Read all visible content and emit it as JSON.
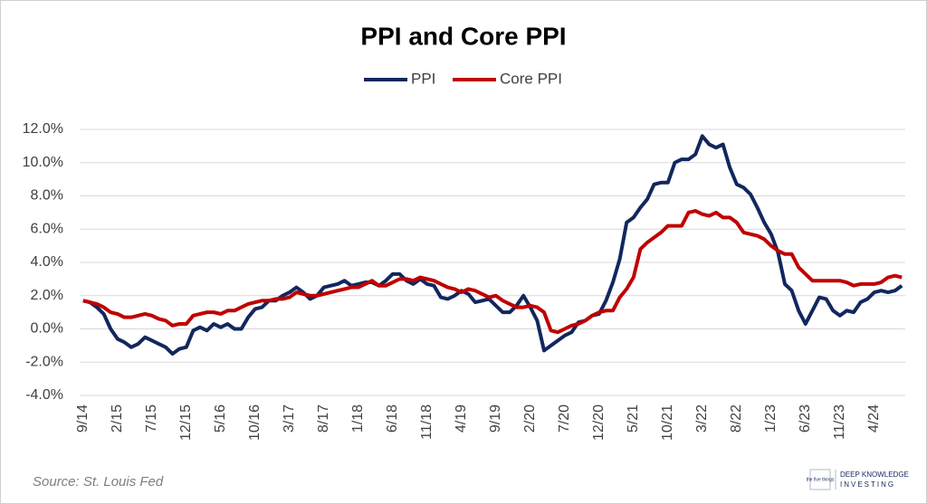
{
  "chart_data": {
    "type": "line",
    "title": "PPI and Core PPI",
    "source": "Source: St. Louis Fed",
    "brand": [
      "the five things",
      "DEEP KNOWLEDGE",
      "INVESTING"
    ],
    "legend": "top",
    "grid": true,
    "categories": [
      "9/14",
      null,
      null,
      null,
      null,
      "2/15",
      null,
      null,
      null,
      null,
      "7/15",
      null,
      null,
      null,
      null,
      "12/15",
      null,
      null,
      null,
      null,
      "5/16",
      null,
      null,
      null,
      null,
      "10/16",
      null,
      null,
      null,
      null,
      "3/17",
      null,
      null,
      null,
      null,
      "8/17",
      null,
      null,
      null,
      null,
      "1/18",
      null,
      null,
      null,
      null,
      "6/18",
      null,
      null,
      null,
      null,
      "11/18",
      null,
      null,
      null,
      null,
      "4/19",
      null,
      null,
      null,
      null,
      "9/19",
      null,
      null,
      null,
      null,
      "2/20",
      null,
      null,
      null,
      null,
      "7/20",
      null,
      null,
      null,
      null,
      "12/20",
      null,
      null,
      null,
      null,
      "5/21",
      null,
      null,
      null,
      null,
      "10/21",
      null,
      null,
      null,
      null,
      "3/22",
      null,
      null,
      null,
      null,
      "8/22",
      null,
      null,
      null,
      null,
      "1/23",
      null,
      null,
      null,
      null,
      "6/23",
      null,
      null,
      null,
      null,
      "11/23",
      null,
      null,
      null,
      null,
      "4/24",
      null,
      null,
      null,
      null
    ],
    "series": [
      {
        "name": "PPI",
        "color": "#12275e",
        "values": [
          1.7,
          1.6,
          1.3,
          0.9,
          0.0,
          -0.6,
          -0.8,
          -1.1,
          -0.9,
          -0.5,
          -0.7,
          -0.9,
          -1.1,
          -1.5,
          -1.2,
          -1.1,
          -0.1,
          0.1,
          -0.1,
          0.3,
          0.1,
          0.3,
          0.0,
          0.0,
          0.7,
          1.2,
          1.3,
          1.7,
          1.7,
          2.0,
          2.2,
          2.5,
          2.2,
          1.8,
          2.0,
          2.5,
          2.6,
          2.7,
          2.9,
          2.6,
          2.7,
          2.8,
          2.8,
          2.6,
          2.9,
          3.3,
          3.3,
          2.9,
          2.7,
          3.0,
          2.7,
          2.6,
          1.9,
          1.8,
          2.0,
          2.3,
          2.1,
          1.6,
          1.7,
          1.8,
          1.4,
          1.0,
          1.0,
          1.4,
          2.0,
          1.3,
          0.5,
          -1.3,
          -1.0,
          -0.7,
          -0.4,
          -0.2,
          0.4,
          0.5,
          0.8,
          0.9,
          1.7,
          2.8,
          4.2,
          6.4,
          6.7,
          7.3,
          7.8,
          8.7,
          8.8,
          8.8,
          10.0,
          10.2,
          10.2,
          10.5,
          11.6,
          11.1,
          10.9,
          11.1,
          9.7,
          8.7,
          8.5,
          8.1,
          7.3,
          6.4,
          5.7,
          4.6,
          2.7,
          2.3,
          1.1,
          0.3,
          1.1,
          1.9,
          1.8,
          1.1,
          0.8,
          1.1,
          1.0,
          1.6,
          1.8,
          2.2,
          2.3,
          2.2,
          2.3,
          2.6
        ]
      },
      {
        "name": "Core PPI",
        "color": "#c00000",
        "values": [
          1.7,
          1.6,
          1.5,
          1.3,
          1.0,
          0.9,
          0.7,
          0.7,
          0.8,
          0.9,
          0.8,
          0.6,
          0.5,
          0.2,
          0.3,
          0.3,
          0.8,
          0.9,
          1.0,
          1.0,
          0.9,
          1.1,
          1.1,
          1.3,
          1.5,
          1.6,
          1.7,
          1.7,
          1.8,
          1.8,
          1.9,
          2.2,
          2.1,
          2.0,
          2.0,
          2.1,
          2.2,
          2.3,
          2.4,
          2.5,
          2.5,
          2.7,
          2.9,
          2.6,
          2.6,
          2.8,
          3.0,
          3.0,
          2.9,
          3.1,
          3.0,
          2.9,
          2.7,
          2.5,
          2.4,
          2.2,
          2.4,
          2.3,
          2.1,
          1.9,
          2.0,
          1.7,
          1.5,
          1.3,
          1.3,
          1.4,
          1.3,
          1.0,
          -0.1,
          -0.2,
          0.0,
          0.2,
          0.3,
          0.5,
          0.8,
          1.0,
          1.1,
          1.1,
          1.9,
          2.4,
          3.1,
          4.8,
          5.2,
          5.5,
          5.8,
          6.2,
          6.2,
          6.2,
          7.0,
          7.1,
          6.9,
          6.8,
          7.0,
          6.7,
          6.7,
          6.4,
          5.8,
          5.7,
          5.6,
          5.4,
          5.0,
          4.7,
          4.5,
          4.5,
          3.7,
          3.3,
          2.9,
          2.9,
          2.9,
          2.9,
          2.9,
          2.8,
          2.6,
          2.7,
          2.7,
          2.7,
          2.8,
          3.1,
          3.2,
          3.1
        ]
      }
    ],
    "ylim": [
      -4,
      12
    ],
    "yticks": [
      {
        "value": -4,
        "label": "-4.0%"
      },
      {
        "value": -2,
        "label": "-2.0%"
      },
      {
        "value": 0,
        "label": "0.0%"
      },
      {
        "value": 2,
        "label": "2.0%"
      },
      {
        "value": 4,
        "label": "4.0%"
      },
      {
        "value": 6,
        "label": "6.0%"
      },
      {
        "value": 8,
        "label": "8.0%"
      },
      {
        "value": 10,
        "label": "10.0%"
      },
      {
        "value": 12,
        "label": "12.0%"
      }
    ]
  }
}
